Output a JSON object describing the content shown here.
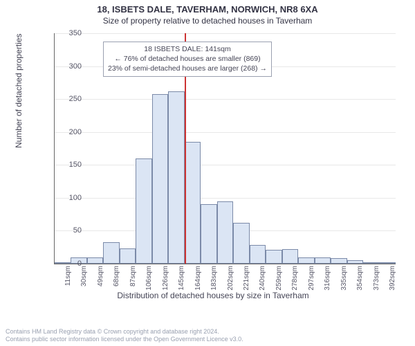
{
  "header": {
    "address": "18, ISBETS DALE, TAVERHAM, NORWICH, NR8 6XA",
    "subtitle": "Size of property relative to detached houses in Taverham"
  },
  "chart": {
    "type": "histogram",
    "ylabel": "Number of detached properties",
    "xlabel": "Distribution of detached houses by size in Taverham",
    "ylim": [
      0,
      350
    ],
    "ytick_step": 50,
    "yticks": [
      0,
      50,
      100,
      150,
      200,
      250,
      300,
      350
    ],
    "xticks": [
      "11sqm",
      "30sqm",
      "49sqm",
      "68sqm",
      "87sqm",
      "106sqm",
      "126sqm",
      "145sqm",
      "164sqm",
      "183sqm",
      "202sqm",
      "221sqm",
      "240sqm",
      "259sqm",
      "278sqm",
      "297sqm",
      "316sqm",
      "335sqm",
      "354sqm",
      "373sqm",
      "392sqm"
    ],
    "xtick_count": 21,
    "bar_fill": "#dbe5f4",
    "bar_stroke": "#7b8aa8",
    "grid_color": "#e8e8e8",
    "background_color": "#ffffff",
    "values": [
      2,
      10,
      10,
      33,
      23,
      160,
      258,
      262,
      185,
      90,
      95,
      62,
      28,
      21,
      22,
      10,
      10,
      8,
      5,
      2,
      2
    ],
    "reference_line": {
      "x_index": 8,
      "color": "#cc3333"
    },
    "callout": {
      "line1": "18 ISBETS DALE: 141sqm",
      "line2": "← 76% of detached houses are smaller (869)",
      "line3": "23% of semi-detached houses are larger (268) →"
    },
    "title_fontsize": 13,
    "label_fontsize": 12,
    "tick_fontsize": 10
  },
  "footer": {
    "line1": "Contains HM Land Registry data © Crown copyright and database right 2024.",
    "line2": "Contains public sector information licensed under the Open Government Licence v3.0."
  }
}
